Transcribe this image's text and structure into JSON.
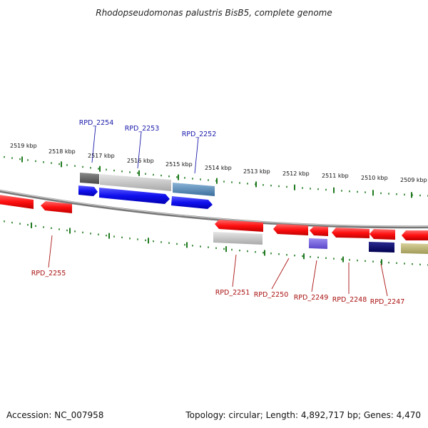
{
  "title": "Rhodopseudomonas palustris BisB5, complete genome",
  "footer": {
    "accession": "Accession: NC_007958",
    "summary": "Topology: circular; Length: 4,892,717 bp; Genes: 4,470"
  },
  "colors": {
    "plus_label": "#1a1aaa",
    "minus_label": "#aa1111",
    "tick": "#1f7a1f",
    "backbone": "#888888"
  },
  "ticks": [
    {
      "label": "2519 kbp"
    },
    {
      "label": "2518 kbp"
    },
    {
      "label": "2517 kbp"
    },
    {
      "label": "2516 kbp"
    },
    {
      "label": "2515 kbp"
    },
    {
      "label": "2514 kbp"
    },
    {
      "label": "2513 kbp"
    },
    {
      "label": "2512 kbp"
    },
    {
      "label": "2511 kbp"
    },
    {
      "label": "2510 kbp"
    },
    {
      "label": "2509 kbp"
    }
  ],
  "genes": [
    {
      "name": "RPD_2254",
      "strand": "+"
    },
    {
      "name": "RPD_2253",
      "strand": "+"
    },
    {
      "name": "RPD_2252",
      "strand": "+"
    },
    {
      "name": "RPD_2255",
      "strand": "-"
    },
    {
      "name": "RPD_2251",
      "strand": "-"
    },
    {
      "name": "RPD_2250",
      "strand": "-"
    },
    {
      "name": "RPD_2249",
      "strand": "-"
    },
    {
      "name": "RPD_2248",
      "strand": "-"
    },
    {
      "name": "RPD_2247",
      "strand": "-"
    }
  ]
}
